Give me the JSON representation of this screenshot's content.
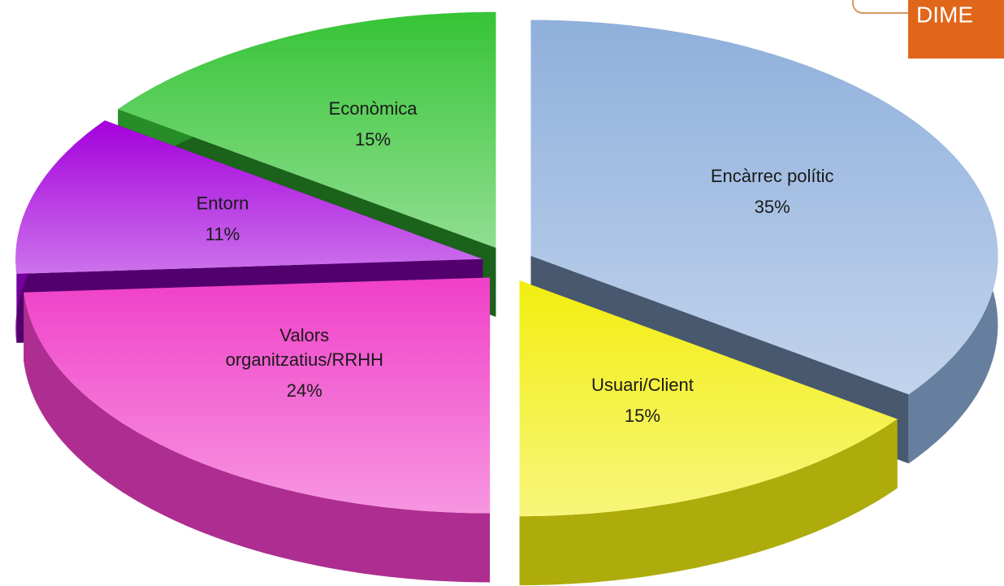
{
  "chart_data": {
    "type": "pie",
    "categories": [
      "Encàrrec polític",
      "Usuari/Client",
      "Valors organitzatius/RRHH",
      "Entorn",
      "Econòmica"
    ],
    "values": [
      35,
      15,
      24,
      11,
      15
    ],
    "value_labels": [
      "35%",
      "15%",
      "24%",
      "11%",
      "15%"
    ],
    "colors": [
      "#8fb0dc",
      "#f2ee10",
      "#f040c8",
      "#a400dc",
      "#36c436"
    ],
    "badge": "DIME"
  }
}
